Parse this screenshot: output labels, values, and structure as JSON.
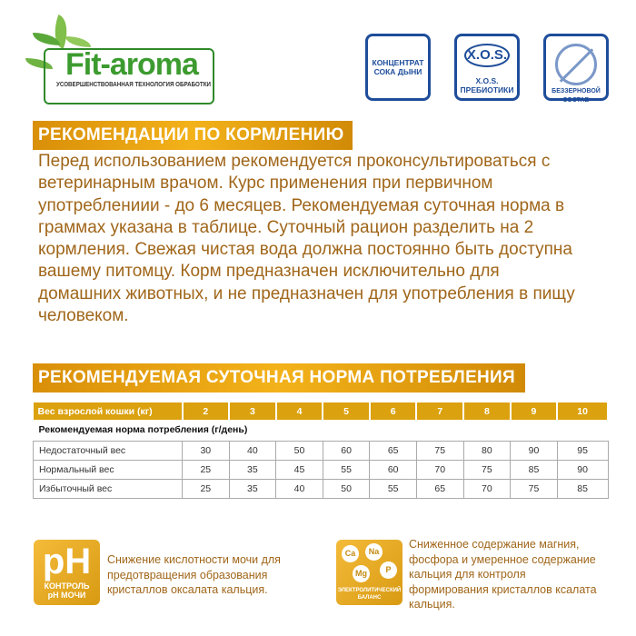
{
  "logo": {
    "name": "Fit-aroma",
    "tagline": "УСОВЕРШЕНСТВОВАННАЯ ТЕХНОЛОГИЯ ОБРАБОТКИ"
  },
  "badges": [
    {
      "line1": "КОНЦЕНТРАТ",
      "line2": "СОКА ДЫНИ"
    },
    {
      "big": "X.O.S.",
      "line1": "X.O.S.",
      "line2": "ПРЕБИОТИКИ"
    },
    {
      "line1": "БЕЗЗЕРНОВОЙ СОСТАВ"
    }
  ],
  "feeding": {
    "title": "РЕКОМЕНДАЦИИ ПО КОРМЛЕНИЮ",
    "lines": [
      "Перед использованием рекомендуется проконсультироваться с",
      "ветеринарным врачом. Курс применения при первичном",
      "употреблениии - до 6 месяцев. Рекомендуемая суточная норма в",
      "граммах указана в таблице. Суточный рацион разделить на 2",
      "кормления. Свежая чистая вода должна постоянно быть доступна",
      "вашему питомцу. Корм предназначен исключительно для",
      "домашних животных, и не предназначен для употребления в пищу",
      "человеком."
    ]
  },
  "norm": {
    "title": "РЕКОМЕНДУЕМАЯ СУТОЧНАЯ НОРМА ПОТРЕБЛЕНИЯ",
    "header": [
      "Вес взрослой кошки (кг)",
      "2",
      "3",
      "4",
      "5",
      "6",
      "7",
      "8",
      "9",
      "10"
    ],
    "subtitle": "Рекомендуемая норма потребления (г/день)",
    "rows": [
      [
        "Недостаточный вес",
        "30",
        "40",
        "50",
        "60",
        "65",
        "75",
        "80",
        "90",
        "95"
      ],
      [
        "Нормальный вес",
        "25",
        "35",
        "45",
        "55",
        "60",
        "70",
        "75",
        "85",
        "90"
      ],
      [
        "Избыточный вес",
        "25",
        "35",
        "40",
        "50",
        "55",
        "65",
        "70",
        "75",
        "85"
      ]
    ]
  },
  "features": [
    {
      "icon_big": "pH",
      "icon_small1": "КОНТРОЛЬ",
      "icon_small2": "pH МОЧИ",
      "text": [
        "Снижение кислотности мочи для",
        "предотвращения образования",
        "кристаллов оксалата кальция."
      ]
    },
    {
      "elements": [
        "Ca",
        "Na",
        "Mg",
        "P"
      ],
      "icon_small1": "ЭЛЕКТРОЛИТИЧЕСКИЙ",
      "icon_small2": "БАЛАНС",
      "text": [
        "Сниженное содержание магния,",
        "фосфора и умеренное содержание",
        "кальция для контроля",
        "формирования кристаллов ксалата",
        "кальция."
      ]
    }
  ],
  "colors": {
    "accent": "#dba10e",
    "text": "#a0661a",
    "badge": "#1e4d9a",
    "logo": "#3c9b2f"
  }
}
